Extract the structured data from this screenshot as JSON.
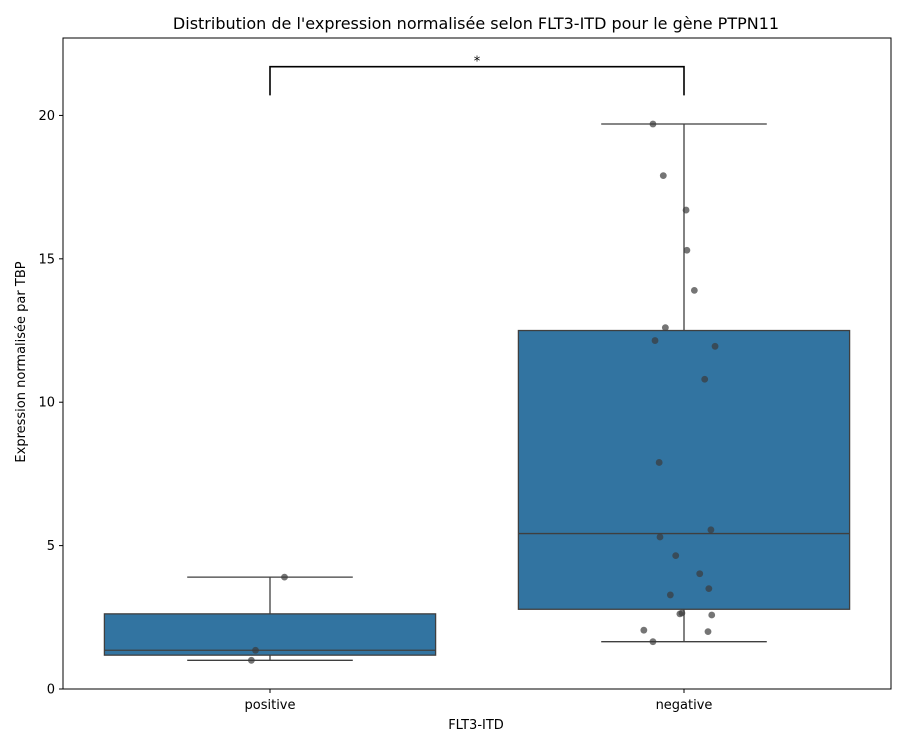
{
  "chart_data": {
    "type": "box",
    "title": "Distribution de l'expression normalisée selon FLT3-ITD pour le gène PTPN11",
    "xlabel": "FLT3-ITD",
    "ylabel": "Expression normalisée par TBP",
    "ylim": [
      0,
      22.7
    ],
    "yticks": [
      0,
      5,
      10,
      15,
      20
    ],
    "categories": [
      "positive",
      "negative"
    ],
    "box_color": "#3274a1",
    "point_color": "#3a3a3a",
    "boxes": [
      {
        "category": "positive",
        "whisker_low": 1.0,
        "q1": 1.18,
        "median": 1.35,
        "q3": 2.62,
        "whisker_high": 3.9,
        "points": [
          {
            "value": 3.9,
            "jitter": 0.035
          },
          {
            "value": 1.35,
            "jitter": -0.035
          },
          {
            "value": 1.0,
            "jitter": -0.045
          }
        ]
      },
      {
        "category": "negative",
        "whisker_low": 1.65,
        "q1": 2.78,
        "median": 5.42,
        "q3": 12.5,
        "whisker_high": 19.7,
        "points": [
          {
            "value": 19.7,
            "jitter": -0.075
          },
          {
            "value": 17.9,
            "jitter": -0.05
          },
          {
            "value": 16.7,
            "jitter": 0.005
          },
          {
            "value": 15.3,
            "jitter": 0.007
          },
          {
            "value": 13.9,
            "jitter": 0.025
          },
          {
            "value": 12.6,
            "jitter": -0.045
          },
          {
            "value": 12.15,
            "jitter": -0.07
          },
          {
            "value": 11.95,
            "jitter": 0.075
          },
          {
            "value": 10.8,
            "jitter": 0.05
          },
          {
            "value": 7.9,
            "jitter": -0.06
          },
          {
            "value": 5.55,
            "jitter": 0.065
          },
          {
            "value": 5.3,
            "jitter": -0.058
          },
          {
            "value": 4.65,
            "jitter": -0.02
          },
          {
            "value": 4.02,
            "jitter": 0.038
          },
          {
            "value": 3.5,
            "jitter": 0.06
          },
          {
            "value": 3.28,
            "jitter": -0.033
          },
          {
            "value": 2.65,
            "jitter": -0.005
          },
          {
            "value": 2.62,
            "jitter": -0.01
          },
          {
            "value": 2.58,
            "jitter": 0.067
          },
          {
            "value": 2.05,
            "jitter": -0.097
          },
          {
            "value": 2.0,
            "jitter": 0.058
          },
          {
            "value": 1.65,
            "jitter": -0.075
          }
        ]
      }
    ],
    "annotation": {
      "text": "*",
      "from": "positive",
      "to": "negative",
      "bracket_low": 20.7,
      "bracket_high": 21.7
    }
  }
}
